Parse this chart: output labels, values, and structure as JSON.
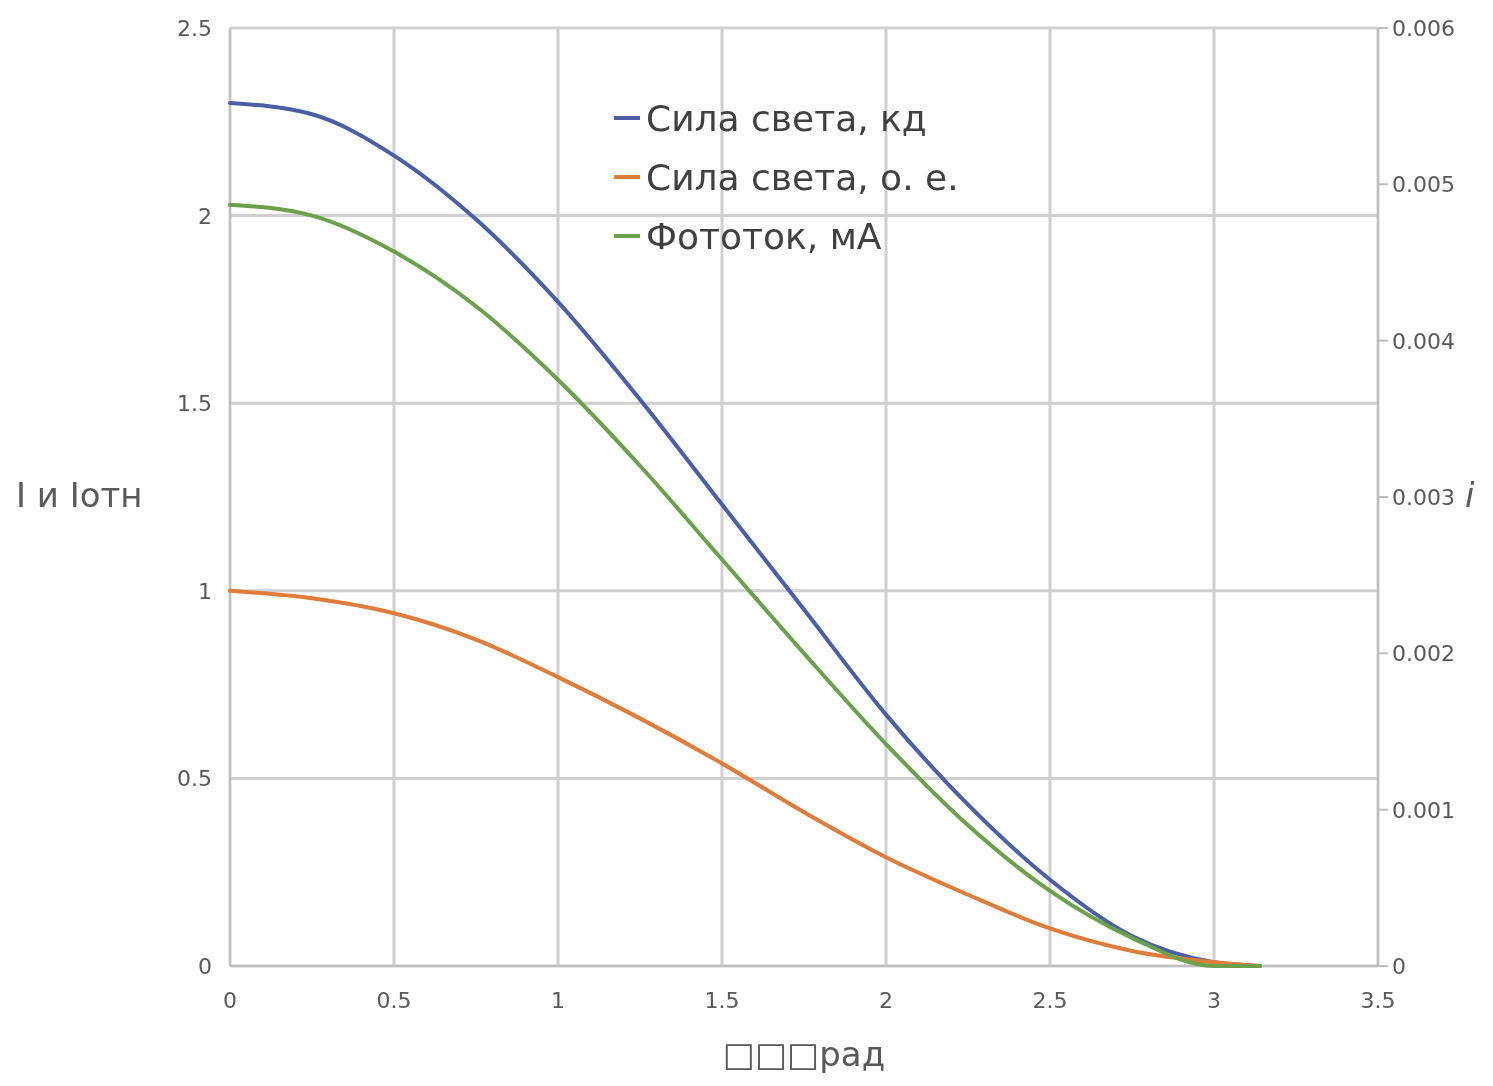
{
  "chart_data": {
    "type": "line",
    "xlabel": "□□□рад",
    "ylabel": "I и Iотн",
    "y2label": "i",
    "x": [
      0,
      0.25,
      0.5,
      0.75,
      1,
      1.25,
      1.5,
      1.75,
      2,
      2.25,
      2.5,
      2.75,
      3,
      3.14
    ],
    "series": [
      {
        "name": "Сила света, кд",
        "color": "#4a5fa8",
        "values": [
          2.3,
          2.27,
          2.16,
          1.99,
          1.77,
          1.51,
          1.23,
          0.95,
          0.67,
          0.43,
          0.23,
          0.08,
          0.01,
          0
        ]
      },
      {
        "name": "Сила света, о. е.",
        "color": "#e07b39",
        "values": [
          1,
          0.98,
          0.94,
          0.87,
          0.77,
          0.66,
          0.54,
          0.41,
          0.29,
          0.19,
          0.1,
          0.04,
          0.01,
          0
        ]
      },
      {
        "name": "Фототок, мА",
        "color": "#6aa14a",
        "axis": "y2",
        "values": [
          0.00487,
          0.0048,
          0.00457,
          0.00422,
          0.00375,
          0.0032,
          0.0026,
          0.002,
          0.00142,
          0.0009,
          0.00048,
          0.00018,
          0,
          0
        ]
      }
    ],
    "xlim": [
      0,
      3.5
    ],
    "xticks": [
      0,
      0.5,
      1,
      1.5,
      2,
      2.5,
      3,
      3.5
    ],
    "ylim": [
      0,
      2.5
    ],
    "yticks": [
      0,
      0.5,
      1,
      1.5,
      2,
      2.5
    ],
    "y2lim": [
      0,
      0.006
    ],
    "y2ticks": [
      0,
      0.001,
      0.002,
      0.003,
      0.004,
      0.005,
      0.006
    ],
    "grid": true,
    "legend": "top",
    "line_style": "solid",
    "marker": "none"
  }
}
